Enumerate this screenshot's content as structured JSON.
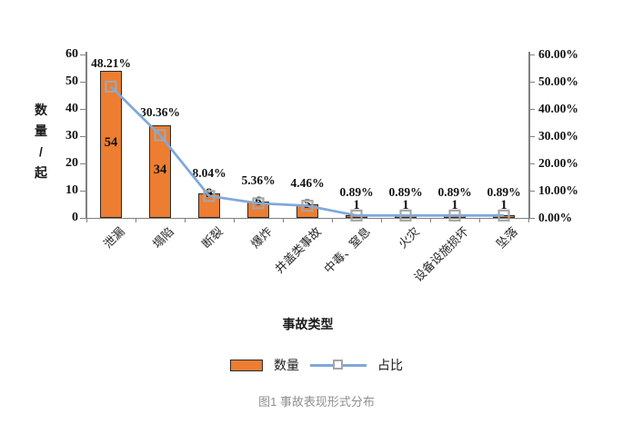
{
  "caption": "图1 事故表现形式分布",
  "chart_data": {
    "type": "bar",
    "subtype": "combo-bar-line",
    "categories": [
      "泄漏",
      "塌陷",
      "断裂",
      "爆炸",
      "井盖类事故",
      "中毒、窒息",
      "火灾",
      "设备设施损坏",
      "坠落"
    ],
    "series": [
      {
        "name": "数量",
        "type": "bar",
        "values": [
          54,
          34,
          9,
          6,
          5,
          1,
          1,
          1,
          1
        ]
      },
      {
        "name": "占比",
        "type": "line",
        "values": [
          48.21,
          30.36,
          8.04,
          5.36,
          4.46,
          0.89,
          0.89,
          0.89,
          0.89
        ],
        "labels": [
          "48.21%",
          "30.36%",
          "8.04%",
          "5.36%",
          "4.46%",
          "0.89%",
          "0.89%",
          "0.89%",
          "0.89%"
        ]
      }
    ],
    "xlabel": "事故类型",
    "left_axis": {
      "title": "数量/起",
      "min": 0,
      "max": 60,
      "step": 10,
      "ticks": [
        "0",
        "10",
        "20",
        "30",
        "40",
        "50",
        "60"
      ]
    },
    "right_axis": {
      "min": 0,
      "max": 60,
      "step": 10,
      "ticks": [
        "0.00%",
        "10.00%",
        "20.00%",
        "30.00%",
        "40.00%",
        "50.00%",
        "60.00%"
      ]
    },
    "legend": [
      {
        "label": "数量",
        "swatch": "bar"
      },
      {
        "label": "占比",
        "swatch": "line-marker"
      }
    ],
    "grid": false,
    "legend_position": "bottom",
    "colors": {
      "bar_fill": "#ED7D31",
      "bar_border": "#2b2b2b",
      "line": "#7FA8DC",
      "marker_border": "#A6A6A6",
      "axis": "#808080",
      "text": "#111111",
      "caption": "#8f8f8f"
    }
  }
}
